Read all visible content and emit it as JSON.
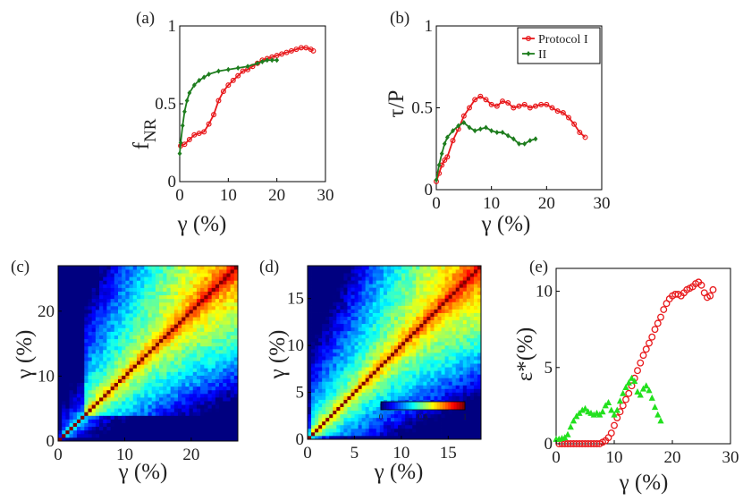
{
  "chart_data": [
    {
      "panel": "(a)",
      "type": "line",
      "xlabel": "γ (%)",
      "ylabel": "f",
      "ylabel_sub": "NR",
      "xlim": [
        0,
        30
      ],
      "ylim": [
        0,
        1
      ],
      "xticks": [
        0,
        10,
        20,
        30
      ],
      "yticks": [
        0,
        0.5,
        1
      ],
      "xtick_labels": [
        "0",
        "10",
        "20",
        "30"
      ],
      "ytick_labels": [
        "0",
        "0.5",
        "1"
      ],
      "series": [
        {
          "name": "Protocol I",
          "color": "#e8191c",
          "marker": "circle",
          "x": [
            0.2,
            1,
            2,
            3,
            4,
            5,
            6,
            7,
            8,
            9,
            10,
            11,
            12,
            13,
            14,
            15,
            16,
            17,
            18,
            19,
            20,
            21,
            22,
            23,
            24,
            25,
            26,
            27,
            27.5
          ],
          "y": [
            0.23,
            0.24,
            0.27,
            0.3,
            0.31,
            0.32,
            0.37,
            0.43,
            0.52,
            0.58,
            0.62,
            0.65,
            0.68,
            0.71,
            0.72,
            0.74,
            0.76,
            0.78,
            0.79,
            0.8,
            0.81,
            0.82,
            0.83,
            0.84,
            0.85,
            0.86,
            0.86,
            0.85,
            0.84
          ]
        },
        {
          "name": "II",
          "color": "#1e7d1e",
          "marker": "diamond",
          "x": [
            0,
            0.2,
            0.6,
            1,
            1.5,
            2,
            3,
            4,
            5,
            6,
            8,
            10,
            12,
            14,
            16,
            17,
            18,
            19,
            20
          ],
          "y": [
            0.18,
            0.25,
            0.36,
            0.45,
            0.52,
            0.57,
            0.62,
            0.65,
            0.67,
            0.69,
            0.71,
            0.72,
            0.73,
            0.74,
            0.76,
            0.77,
            0.78,
            0.78,
            0.78
          ]
        }
      ]
    },
    {
      "panel": "(b)",
      "type": "line",
      "xlabel": "γ (%)",
      "ylabel": "τ/P",
      "xlim": [
        0,
        30
      ],
      "ylim": [
        0,
        1
      ],
      "xticks": [
        0,
        10,
        20,
        30
      ],
      "yticks": [
        0,
        0.5,
        1
      ],
      "xtick_labels": [
        "0",
        "10",
        "20",
        "30"
      ],
      "ytick_labels": [
        "0",
        "0.5",
        "1"
      ],
      "legend": {
        "position": "top-right",
        "entries": [
          "Protocol I",
          "II"
        ]
      },
      "series": [
        {
          "name": "Protocol I",
          "color": "#e8191c",
          "marker": "circle",
          "x": [
            0,
            0.5,
            1,
            1.5,
            2,
            3,
            4,
            5,
            6,
            7,
            8,
            9,
            10,
            11,
            12,
            13,
            14,
            15,
            16,
            17,
            18,
            19,
            20,
            21,
            22,
            23,
            24,
            25,
            26,
            27
          ],
          "y": [
            0.05,
            0.1,
            0.15,
            0.18,
            0.2,
            0.3,
            0.37,
            0.45,
            0.5,
            0.55,
            0.57,
            0.55,
            0.52,
            0.51,
            0.54,
            0.53,
            0.5,
            0.51,
            0.52,
            0.5,
            0.51,
            0.52,
            0.52,
            0.5,
            0.48,
            0.47,
            0.44,
            0.4,
            0.35,
            0.32
          ]
        },
        {
          "name": "II",
          "color": "#1e7d1e",
          "marker": "diamond",
          "x": [
            0,
            0.5,
            1,
            1.5,
            2,
            3,
            4,
            5,
            6,
            7,
            8,
            9,
            10,
            11,
            12,
            13,
            14,
            15,
            16,
            17,
            18
          ],
          "y": [
            0.06,
            0.15,
            0.22,
            0.28,
            0.32,
            0.36,
            0.39,
            0.41,
            0.38,
            0.36,
            0.37,
            0.38,
            0.36,
            0.35,
            0.35,
            0.33,
            0.31,
            0.28,
            0.28,
            0.3,
            0.31
          ]
        }
      ]
    },
    {
      "panel": "(c)",
      "type": "heatmap",
      "xlabel": "γ (%)",
      "ylabel": "γ (%)",
      "xlim": [
        0,
        27
      ],
      "ylim": [
        0,
        27
      ],
      "xticks": [
        0,
        10,
        20
      ],
      "yticks": [
        0,
        10,
        20
      ],
      "xtick_labels": [
        "0",
        "10",
        "20"
      ],
      "ytick_labels": [
        "0",
        "10",
        "20"
      ],
      "colormap": "jet",
      "clim": [
        0,
        1
      ]
    },
    {
      "panel": "(d)",
      "type": "heatmap",
      "xlabel": "γ (%)",
      "ylabel": "γ (%)",
      "xlim": [
        0,
        18.5
      ],
      "ylim": [
        0,
        18.5
      ],
      "xticks": [
        0,
        5,
        10,
        15
      ],
      "yticks": [
        0,
        5,
        10,
        15
      ],
      "xtick_labels": [
        "0",
        "5",
        "10",
        "15"
      ],
      "ytick_labels": [
        "0",
        "5",
        "10",
        "15"
      ],
      "colormap": "jet",
      "clim": [
        0,
        1
      ],
      "colorbar": {
        "ticks": [
          0,
          0.5,
          1
        ],
        "tick_labels": [
          "0",
          "0.5",
          "1"
        ]
      }
    },
    {
      "panel": "(e)",
      "type": "scatter",
      "xlabel": "γ (%)",
      "ylabel": "ε*(%)",
      "xlim": [
        0,
        30
      ],
      "ylim": [
        0,
        11.5
      ],
      "xticks": [
        0,
        10,
        20,
        30
      ],
      "yticks": [
        0,
        5,
        10
      ],
      "xtick_labels": [
        "0",
        "10",
        "20",
        "30"
      ],
      "ytick_labels": [
        "0",
        "5",
        "10"
      ],
      "series": [
        {
          "name": "Protocol I",
          "color": "#e8191c",
          "marker": "open-circle",
          "x": [
            0.5,
            1,
            1.5,
            2,
            2.5,
            3,
            3.5,
            4,
            4.5,
            5,
            5.5,
            6,
            6.5,
            7,
            7.5,
            8,
            8.5,
            9,
            9.5,
            10,
            10.5,
            11,
            11.5,
            12,
            12.5,
            13,
            13.5,
            14,
            14.5,
            15,
            15.5,
            16,
            16.5,
            17,
            17.5,
            18,
            18.5,
            19,
            19.5,
            20,
            20.5,
            21,
            21.5,
            22,
            22.5,
            23,
            23.5,
            24,
            24.5,
            25,
            25.5,
            26,
            26.5,
            27
          ],
          "y": [
            0,
            0,
            0,
            0,
            0,
            0,
            0,
            0,
            0,
            0,
            0,
            0,
            0,
            0,
            0,
            0.1,
            0.2,
            0.4,
            0.7,
            1.2,
            1.7,
            2.1,
            2.5,
            2.9,
            3.3,
            3.8,
            4.3,
            4.8,
            5.3,
            5.8,
            6.2,
            6.6,
            7.0,
            7.5,
            7.9,
            8.3,
            8.8,
            9.2,
            9.5,
            9.7,
            9.8,
            9.8,
            9.7,
            9.9,
            10.1,
            10.2,
            10.3,
            10.5,
            10.6,
            10.4,
            9.9,
            9.6,
            9.7,
            10.1
          ]
        },
        {
          "name": "II",
          "color": "#22e01e",
          "marker": "triangle",
          "x": [
            0,
            0.5,
            1,
            1.5,
            2,
            2.5,
            3,
            3.5,
            4,
            4.5,
            5,
            5.5,
            6,
            6.5,
            7,
            7.5,
            8,
            8.5,
            9,
            9.5,
            10,
            10.5,
            11,
            11.5,
            12,
            12.5,
            13,
            13.5,
            14,
            14.5,
            15,
            15.5,
            16,
            16.5,
            17,
            17.5,
            18
          ],
          "y": [
            0.3,
            0.3,
            0.35,
            0.4,
            0.6,
            1.1,
            1.5,
            1.8,
            2.0,
            2.2,
            2.3,
            2.1,
            2.0,
            1.9,
            2.0,
            1.9,
            2.1,
            2.5,
            2.7,
            2.2,
            1.9,
            2.2,
            2.8,
            3.3,
            3.7,
            4.0,
            4.3,
            4.1,
            3.4,
            3.2,
            3.6,
            3.8,
            3.5,
            3.0,
            2.4,
            1.9,
            1.5
          ]
        }
      ]
    }
  ]
}
